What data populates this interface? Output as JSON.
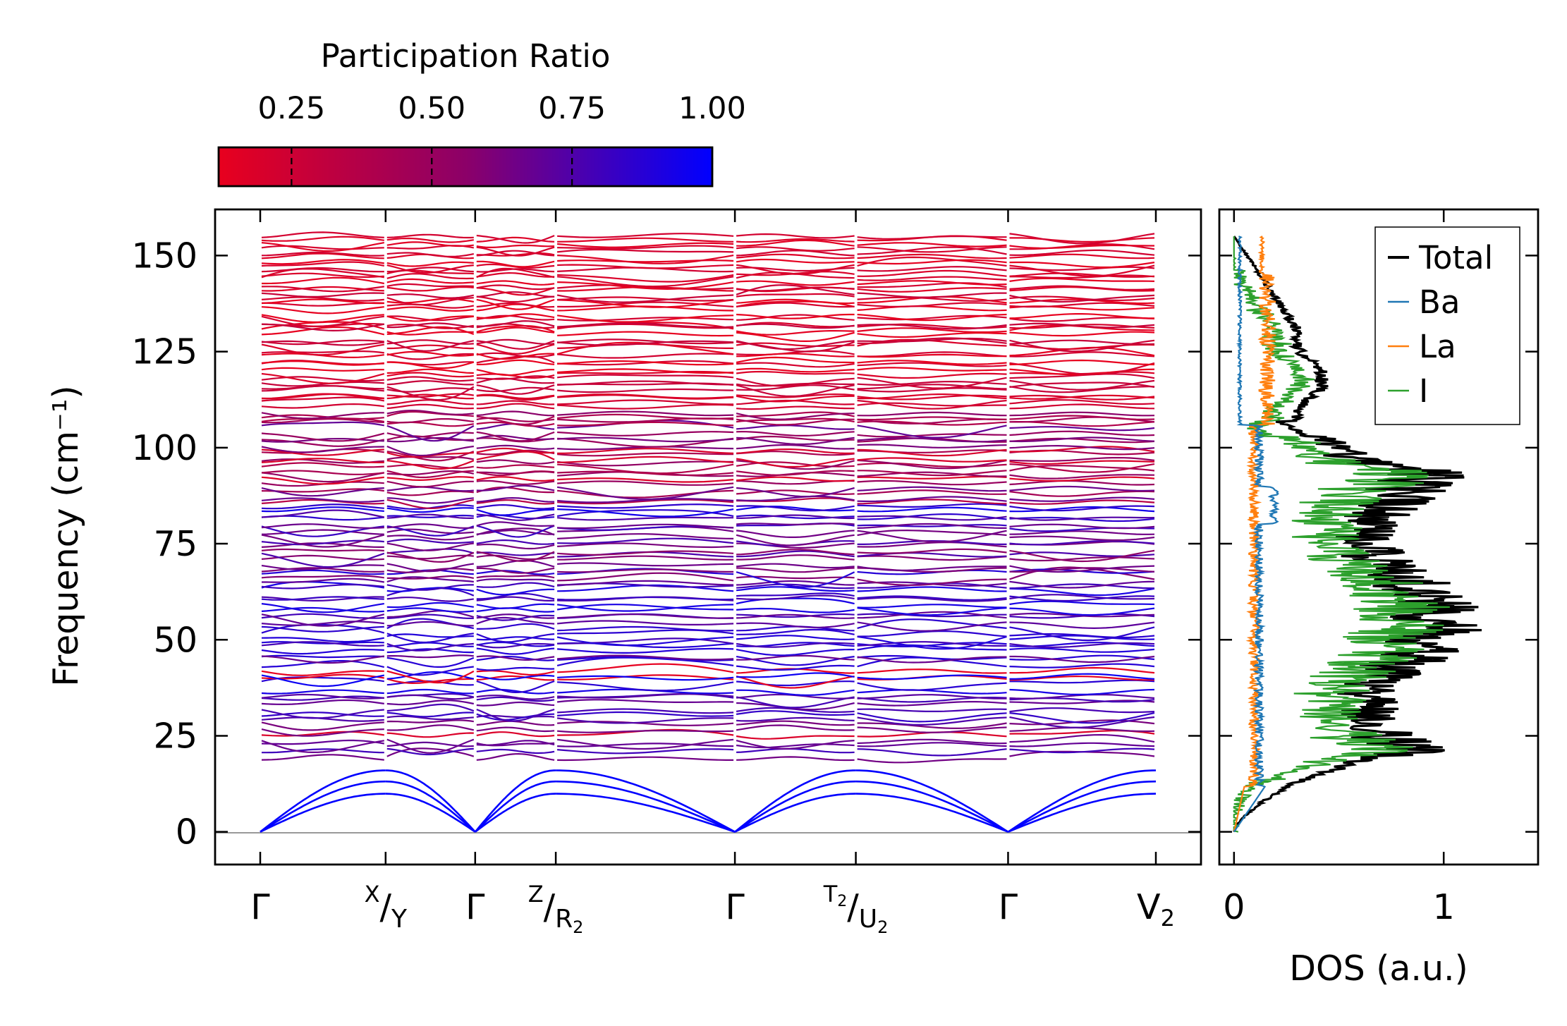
{
  "chart_data": [
    {
      "type": "line",
      "subtype": "phonon-band-structure",
      "ylabel": "Frequency (cm⁻¹)",
      "ylim": [
        -8.5,
        162
      ],
      "yticks": [
        0,
        25,
        50,
        75,
        100,
        125,
        150
      ],
      "ytick_labels": [
        "0",
        "25",
        "50",
        "75",
        "100",
        "125",
        "150"
      ],
      "kpoint_positions": [
        0,
        0.14,
        0.24,
        0.33,
        0.53,
        0.665,
        0.835,
        1.0
      ],
      "kpoint_labels": [
        {
          "main": "Γ"
        },
        {
          "sup": "X",
          "slash": "/",
          "main": "Y"
        },
        {
          "main": "Γ"
        },
        {
          "sup": "Z",
          "slash": "/",
          "main": "R",
          "sub": "2"
        },
        {
          "main": "Γ"
        },
        {
          "sup": "T",
          "supsub": "2",
          "slash": "/",
          "main": "U",
          "sub": "2"
        },
        {
          "main": "Γ"
        },
        {
          "main": "V",
          "sub": "2"
        }
      ],
      "acoustic_branch_max": 16,
      "optical_band_range": [
        19,
        155
      ],
      "zero_line_color": "#999999",
      "colorbar": {
        "label": "Participation Ratio",
        "ticks": [
          0.25,
          0.5,
          0.75,
          1.0
        ],
        "tick_labels": [
          "0.25",
          "0.50",
          "0.75",
          "1.00"
        ],
        "range": [
          0.12,
          1.0
        ],
        "color_low": "#e8001e",
        "color_mid": "#8c0068",
        "color_high": "#0000ff"
      }
    },
    {
      "type": "line",
      "subtype": "density-of-states",
      "xlabel": "DOS (a.u.)",
      "xlim": [
        -0.07,
        1.45
      ],
      "xticks": [
        0,
        1
      ],
      "xtick_labels": [
        "0",
        "1"
      ],
      "ylim": [
        -8.5,
        162
      ],
      "legend": {
        "placement": "top-right"
      },
      "series": [
        {
          "name": "Total",
          "color": "#000000"
        },
        {
          "name": "Ba",
          "color": "#1f77b4"
        },
        {
          "name": "La",
          "color": "#ff7f0e"
        },
        {
          "name": "I",
          "color": "#2ca02c"
        }
      ]
    }
  ]
}
